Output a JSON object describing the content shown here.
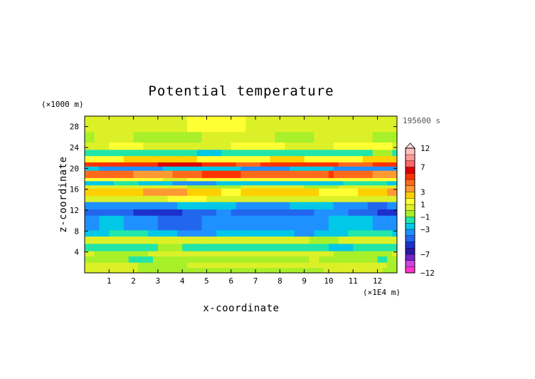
{
  "chart_data": {
    "type": "heatmap",
    "title": "Potential temperature",
    "xlabel": "x-coordinate",
    "ylabel": "z-coordinate",
    "x_unit": "(×1E4 m)",
    "y_unit": "(×1000 m)",
    "time_label": "195600 s",
    "xlim": [
      0,
      12.8
    ],
    "ylim": [
      0,
      30
    ],
    "x_ticks": [
      "1",
      "2",
      "3",
      "4",
      "5",
      "6",
      "7",
      "8",
      "9",
      "10",
      "11",
      "12"
    ],
    "y_ticks": [
      "4",
      "8",
      "12",
      "16",
      "20",
      "24",
      "28"
    ],
    "colorbar": {
      "tick_labels": [
        "12",
        "7",
        "3",
        "1",
        "−1",
        "−3",
        "−7",
        "−12"
      ],
      "tick_values": [
        12,
        7,
        3,
        1,
        -1,
        -3,
        -7,
        -12
      ],
      "levels": [
        -12,
        -10,
        -8,
        -7,
        -6,
        -5,
        -4,
        -3,
        -2,
        -1,
        0,
        1,
        2,
        3,
        4,
        5,
        6,
        7,
        8,
        10,
        12
      ],
      "colors": [
        "#ff33cc",
        "#cc44dd",
        "#7722cc",
        "#2a18a8",
        "#1c30cc",
        "#2266ee",
        "#1e90ff",
        "#00c8e6",
        "#22e6a8",
        "#a8f02a",
        "#dcf028",
        "#ffff33",
        "#ffd000",
        "#ff9933",
        "#ff6a1a",
        "#ff3300",
        "#dd0000",
        "#ff6666",
        "#ff9a9a",
        "#ffc0c0"
      ]
    },
    "field": {
      "note_bands": "anomaly by height band, x-averaged",
      "bands": [
        {
          "z": [
            0.0,
            1.0
          ],
          "value": -0.2
        },
        {
          "z": [
            1.0,
            2.0
          ],
          "value": 0.3
        },
        {
          "z": [
            2.0,
            3.2
          ],
          "value": -0.5
        },
        {
          "z": [
            3.2,
            4.2
          ],
          "value": 0.2
        },
        {
          "z": [
            4.2,
            5.6
          ],
          "value": -1.5
        },
        {
          "z": [
            5.6,
            7.0
          ],
          "value": 0.4
        },
        {
          "z": [
            7.0,
            8.2
          ],
          "value": -2.5
        },
        {
          "z": [
            8.2,
            11.0
          ],
          "value": -3.5
        },
        {
          "z": [
            11.0,
            12.2
          ],
          "value": -4.5
        },
        {
          "z": [
            12.2,
            13.6
          ],
          "value": -3.2
        },
        {
          "z": [
            13.6,
            14.8
          ],
          "value": 0.6
        },
        {
          "z": [
            14.8,
            16.2
          ],
          "value": 2.5
        },
        {
          "z": [
            16.2,
            16.8
          ],
          "value": 0.2
        },
        {
          "z": [
            16.8,
            17.6
          ],
          "value": -2.5
        },
        {
          "z": [
            17.6,
            18.2
          ],
          "value": 1.5
        },
        {
          "z": [
            18.2,
            19.6
          ],
          "value": 4.5
        },
        {
          "z": [
            19.6,
            20.4
          ],
          "value": -3.0
        },
        {
          "z": [
            20.4,
            21.2
          ],
          "value": 5.5
        },
        {
          "z": [
            21.2,
            22.4
          ],
          "value": 2.0
        },
        {
          "z": [
            22.4,
            23.6
          ],
          "value": -1.5
        },
        {
          "z": [
            23.6,
            25.0
          ],
          "value": 0.9
        },
        {
          "z": [
            25.0,
            27.0
          ],
          "value": 0.0
        },
        {
          "z": [
            27.0,
            30.0
          ],
          "value": 0.8
        }
      ]
    }
  }
}
